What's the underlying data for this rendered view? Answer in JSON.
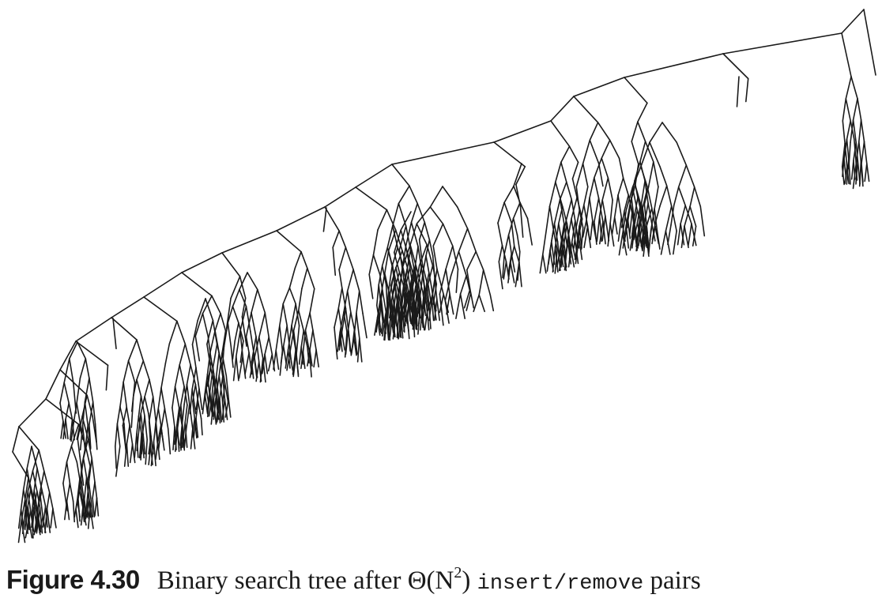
{
  "figure": {
    "label": "Figure 4.30",
    "caption_prefix": "Binary search tree after",
    "caption_math_base": "Θ(N",
    "caption_math_exp": "2",
    "caption_math_close": ")",
    "caption_code_insert": "insert",
    "caption_code_slash": "/",
    "caption_code_remove": "remove",
    "caption_suffix": "pairs"
  },
  "diagram": {
    "type": "binary-search-tree",
    "stroke_color": "#1a1a1a",
    "background": "#ffffff"
  }
}
